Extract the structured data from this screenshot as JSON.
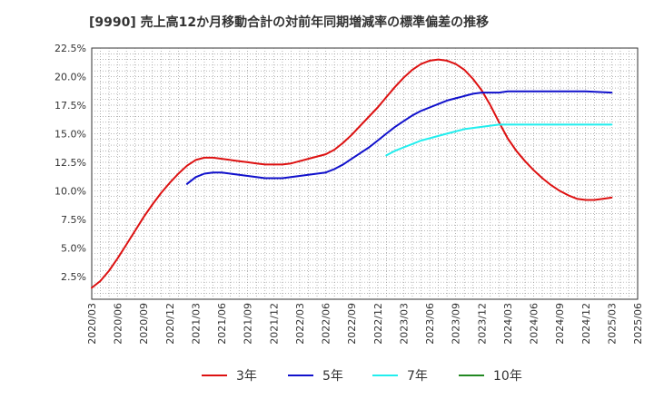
{
  "chart_data": {
    "type": "line",
    "title": "[9990]  売上高12か月移動合計の対前年同期増減率の標準偏差の推移",
    "xlabel": "",
    "ylabel": "",
    "ylim": [
      0.5,
      22.5
    ],
    "xlim": [
      "2020/03",
      "2025/06"
    ],
    "y_ticks": [
      "2.5%",
      "5.0%",
      "7.5%",
      "10.0%",
      "12.5%",
      "15.0%",
      "17.5%",
      "20.0%",
      "22.5%"
    ],
    "y_tick_values": [
      2.5,
      5.0,
      7.5,
      10.0,
      12.5,
      15.0,
      17.5,
      20.0,
      22.5
    ],
    "x_ticks": [
      "2020/03",
      "2020/06",
      "2020/09",
      "2020/12",
      "2021/03",
      "2021/06",
      "2021/09",
      "2021/12",
      "2022/03",
      "2022/06",
      "2022/09",
      "2022/12",
      "2023/03",
      "2023/06",
      "2023/09",
      "2023/12",
      "2024/03",
      "2024/06",
      "2024/09",
      "2024/12",
      "2025/03",
      "2025/06"
    ],
    "grid": true,
    "legend_position": "bottom",
    "series": [
      {
        "name": "3年",
        "color": "#dd1111",
        "points": [
          [
            "2020/03",
            1.5
          ],
          [
            "2020/04",
            2.1
          ],
          [
            "2020/05",
            3.0
          ],
          [
            "2020/06",
            4.1
          ],
          [
            "2020/07",
            5.3
          ],
          [
            "2020/08",
            6.5
          ],
          [
            "2020/09",
            7.7
          ],
          [
            "2020/10",
            8.8
          ],
          [
            "2020/11",
            9.8
          ],
          [
            "2020/12",
            10.7
          ],
          [
            "2021/01",
            11.5
          ],
          [
            "2021/02",
            12.2
          ],
          [
            "2021/03",
            12.7
          ],
          [
            "2021/04",
            12.9
          ],
          [
            "2021/05",
            12.9
          ],
          [
            "2021/06",
            12.8
          ],
          [
            "2021/07",
            12.7
          ],
          [
            "2021/08",
            12.6
          ],
          [
            "2021/09",
            12.5
          ],
          [
            "2021/10",
            12.4
          ],
          [
            "2021/11",
            12.3
          ],
          [
            "2021/12",
            12.3
          ],
          [
            "2022/01",
            12.3
          ],
          [
            "2022/02",
            12.4
          ],
          [
            "2022/03",
            12.6
          ],
          [
            "2022/04",
            12.8
          ],
          [
            "2022/05",
            13.0
          ],
          [
            "2022/06",
            13.2
          ],
          [
            "2022/07",
            13.6
          ],
          [
            "2022/08",
            14.2
          ],
          [
            "2022/09",
            14.9
          ],
          [
            "2022/10",
            15.7
          ],
          [
            "2022/11",
            16.5
          ],
          [
            "2022/12",
            17.3
          ],
          [
            "2023/01",
            18.2
          ],
          [
            "2023/02",
            19.1
          ],
          [
            "2023/03",
            19.9
          ],
          [
            "2023/04",
            20.6
          ],
          [
            "2023/05",
            21.1
          ],
          [
            "2023/06",
            21.4
          ],
          [
            "2023/07",
            21.5
          ],
          [
            "2023/08",
            21.4
          ],
          [
            "2023/09",
            21.1
          ],
          [
            "2023/10",
            20.6
          ],
          [
            "2023/11",
            19.8
          ],
          [
            "2023/12",
            18.8
          ],
          [
            "2024/01",
            17.5
          ],
          [
            "2024/02",
            16.0
          ],
          [
            "2024/03",
            14.6
          ],
          [
            "2024/04",
            13.5
          ],
          [
            "2024/05",
            12.6
          ],
          [
            "2024/06",
            11.8
          ],
          [
            "2024/07",
            11.1
          ],
          [
            "2024/08",
            10.5
          ],
          [
            "2024/09",
            10.0
          ],
          [
            "2024/10",
            9.6
          ],
          [
            "2024/11",
            9.3
          ],
          [
            "2024/12",
            9.2
          ],
          [
            "2025/01",
            9.2
          ],
          [
            "2025/02",
            9.3
          ],
          [
            "2025/03",
            9.4
          ]
        ]
      },
      {
        "name": "5年",
        "color": "#1111cc",
        "points": [
          [
            "2021/02",
            10.6
          ],
          [
            "2021/03",
            11.2
          ],
          [
            "2021/04",
            11.5
          ],
          [
            "2021/05",
            11.6
          ],
          [
            "2021/06",
            11.6
          ],
          [
            "2021/07",
            11.5
          ],
          [
            "2021/08",
            11.4
          ],
          [
            "2021/09",
            11.3
          ],
          [
            "2021/10",
            11.2
          ],
          [
            "2021/11",
            11.1
          ],
          [
            "2021/12",
            11.1
          ],
          [
            "2022/01",
            11.1
          ],
          [
            "2022/02",
            11.2
          ],
          [
            "2022/03",
            11.3
          ],
          [
            "2022/04",
            11.4
          ],
          [
            "2022/05",
            11.5
          ],
          [
            "2022/06",
            11.6
          ],
          [
            "2022/07",
            11.9
          ],
          [
            "2022/08",
            12.3
          ],
          [
            "2022/09",
            12.8
          ],
          [
            "2022/10",
            13.3
          ],
          [
            "2022/11",
            13.8
          ],
          [
            "2022/12",
            14.4
          ],
          [
            "2023/01",
            15.0
          ],
          [
            "2023/02",
            15.6
          ],
          [
            "2023/03",
            16.1
          ],
          [
            "2023/04",
            16.6
          ],
          [
            "2023/05",
            17.0
          ],
          [
            "2023/06",
            17.3
          ],
          [
            "2023/07",
            17.6
          ],
          [
            "2023/08",
            17.9
          ],
          [
            "2023/09",
            18.1
          ],
          [
            "2023/10",
            18.3
          ],
          [
            "2023/11",
            18.5
          ],
          [
            "2023/12",
            18.6
          ],
          [
            "2024/01",
            18.6
          ],
          [
            "2024/02",
            18.6
          ],
          [
            "2024/03",
            18.7
          ],
          [
            "2024/06",
            18.7
          ],
          [
            "2024/09",
            18.7
          ],
          [
            "2024/12",
            18.7
          ],
          [
            "2025/03",
            18.6
          ]
        ]
      },
      {
        "name": "7年",
        "color": "#22eeee",
        "points": [
          [
            "2023/01",
            13.1
          ],
          [
            "2023/02",
            13.5
          ],
          [
            "2023/03",
            13.8
          ],
          [
            "2023/04",
            14.1
          ],
          [
            "2023/05",
            14.4
          ],
          [
            "2023/06",
            14.6
          ],
          [
            "2023/07",
            14.8
          ],
          [
            "2023/08",
            15.0
          ],
          [
            "2023/09",
            15.2
          ],
          [
            "2023/10",
            15.4
          ],
          [
            "2023/11",
            15.5
          ],
          [
            "2023/12",
            15.6
          ],
          [
            "2024/01",
            15.7
          ],
          [
            "2024/02",
            15.8
          ],
          [
            "2024/03",
            15.8
          ],
          [
            "2024/06",
            15.8
          ],
          [
            "2024/09",
            15.8
          ],
          [
            "2024/12",
            15.8
          ],
          [
            "2025/03",
            15.8
          ]
        ]
      },
      {
        "name": "10年",
        "color": "#228822",
        "points": []
      }
    ]
  }
}
